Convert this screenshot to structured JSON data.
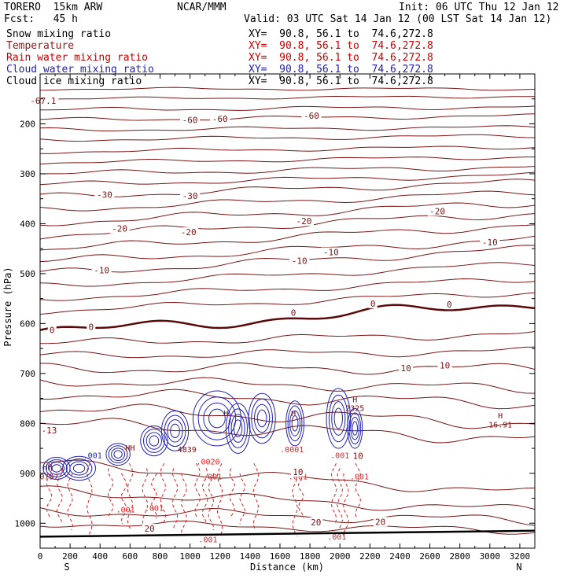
{
  "header": {
    "model": "TORERO  15km ARW",
    "center": "NCAR/MMM",
    "init": "Init: 06 UTC Thu 12 Jan 12",
    "fcst": "Fcst:   45 h",
    "valid": "Valid: 03 UTC Sat 14 Jan 12 (00 LST Sat 14 Jan 12)"
  },
  "legend": [
    {
      "label": "Snow mixing ratio",
      "xy": "XY=  90.8, 56.1 to  74.6,272.8",
      "color": "#000000",
      "xy_color": "#000000"
    },
    {
      "label": "Temperature",
      "xy": "XY=  90.8, 56.1 to  74.6,272.8",
      "color": "#8b1a1a",
      "xy_color": "#cc0000"
    },
    {
      "label": "Rain water mixing ratio",
      "xy": "XY=  90.8, 56.1 to  74.6,272.8",
      "color": "#cc0000",
      "xy_color": "#cc0000"
    },
    {
      "label": "Cloud water mixing ratio",
      "xy": "XY=  90.8, 56.1 to  74.6,272.8",
      "color": "#2222aa",
      "xy_color": "#2222aa"
    },
    {
      "label": "Cloud ice mixing ratio",
      "xy": "XY=  90.8, 56.1 to  74.6,272.8",
      "color": "#000000",
      "xy_color": "#000000"
    }
  ],
  "chart_data": {
    "type": "line",
    "xlabel": "Distance (km)",
    "ylabel": "Pressure (hPa)",
    "xlim": [
      0,
      3300
    ],
    "ylim": [
      1050,
      100
    ],
    "x_ticks": [
      0,
      200,
      400,
      600,
      800,
      1000,
      1200,
      1400,
      1600,
      1800,
      2000,
      2200,
      2400,
      2600,
      2800,
      3000,
      3200
    ],
    "y_ticks": [
      200,
      300,
      400,
      500,
      600,
      700,
      800,
      900,
      1000
    ],
    "endpoints": {
      "left": "S",
      "right": "N"
    },
    "colors": {
      "temperature": "#7a1414",
      "rain": "#dd2222",
      "cloud_water": "#2222bb",
      "ground": "#000000"
    },
    "temperature_labels": [
      {
        "text": "-60",
        "x": 1000,
        "p": 195
      },
      {
        "text": "-60",
        "x": 1200,
        "p": 193
      },
      {
        "text": "-60",
        "x": 1810,
        "p": 187
      },
      {
        "text": "-30",
        "x": 430,
        "p": 345
      },
      {
        "text": "-30",
        "x": 1000,
        "p": 347
      },
      {
        "text": "-20",
        "x": 530,
        "p": 413
      },
      {
        "text": "-20",
        "x": 990,
        "p": 420
      },
      {
        "text": "-20",
        "x": 1760,
        "p": 398
      },
      {
        "text": "-20",
        "x": 2650,
        "p": 378
      },
      {
        "text": "-10",
        "x": 410,
        "p": 496
      },
      {
        "text": "-10",
        "x": 1730,
        "p": 477
      },
      {
        "text": "-10",
        "x": 1940,
        "p": 460
      },
      {
        "text": "-10",
        "x": 3000,
        "p": 440
      },
      {
        "text": "0",
        "x": 80,
        "p": 616
      },
      {
        "text": "0",
        "x": 340,
        "p": 610
      },
      {
        "text": "0",
        "x": 1690,
        "p": 581
      },
      {
        "text": "0",
        "x": 2220,
        "p": 563
      },
      {
        "text": "0",
        "x": 2730,
        "p": 565
      },
      {
        "text": "10",
        "x": 2440,
        "p": 692
      },
      {
        "text": "10",
        "x": 2700,
        "p": 687
      },
      {
        "text": "10",
        "x": 2120,
        "p": 868
      },
      {
        "text": "10",
        "x": 1720,
        "p": 900
      },
      {
        "text": "20",
        "x": 1840,
        "p": 1001
      },
      {
        "text": "20",
        "x": 2270,
        "p": 1000
      },
      {
        "text": "20",
        "x": 730,
        "p": 1014
      },
      {
        "text": "-13",
        "x": 60,
        "p": 817
      },
      {
        "text": "-67.1",
        "x": 20,
        "p": 157
      }
    ],
    "field_labels": [
      {
        "text": "H",
        "x": 3070,
        "p": 790,
        "color": "#7a1414"
      },
      {
        "text": "16.91",
        "x": 3070,
        "p": 808,
        "color": "#7a1414"
      },
      {
        "text": "HH",
        "x": 600,
        "p": 855,
        "color": "#7a1414"
      },
      {
        "text": ".001",
        "x": 350,
        "p": 870,
        "color": "#2222bb"
      },
      {
        "text": "H",
        "x": 1240,
        "p": 785,
        "color": "#7a1414"
      },
      {
        "text": "H",
        "x": 1690,
        "p": 785,
        "color": "#7a1414"
      },
      {
        "text": "H",
        "x": 2100,
        "p": 758,
        "color": "#7a1414"
      },
      {
        "text": "2325",
        "x": 2100,
        "p": 775,
        "color": "#7a1414"
      },
      {
        "text": ".0020",
        "x": 1120,
        "p": 882,
        "color": "#dd2222"
      },
      {
        "text": ".001",
        "x": 1150,
        "p": 912,
        "color": "#dd2222"
      },
      {
        "text": ".001",
        "x": 1720,
        "p": 912,
        "color": "#dd2222"
      },
      {
        "text": ".001",
        "x": 2130,
        "p": 912,
        "color": "#dd2222"
      },
      {
        "text": ".001",
        "x": 570,
        "p": 978,
        "color": "#dd2222"
      },
      {
        "text": ".001",
        "x": 760,
        "p": 975,
        "color": "#dd2222"
      },
      {
        "text": ".001",
        "x": 1120,
        "p": 1038,
        "color": "#dd2222"
      },
      {
        "text": ".001",
        "x": 1980,
        "p": 1033,
        "color": "#dd2222"
      },
      {
        "text": ".001",
        "x": 2000,
        "p": 870,
        "color": "#dd2222"
      },
      {
        "text": ".0001",
        "x": 1680,
        "p": 858,
        "color": "#dd2222"
      },
      {
        "text": "4839",
        "x": 980,
        "p": 858,
        "color": "#7a1414"
      },
      {
        "text": "HH",
        "x": 50,
        "p": 893,
        "color": "#7a1414"
      },
      {
        "text": "0797",
        "x": 60,
        "p": 912,
        "color": "#7a1414"
      }
    ]
  }
}
